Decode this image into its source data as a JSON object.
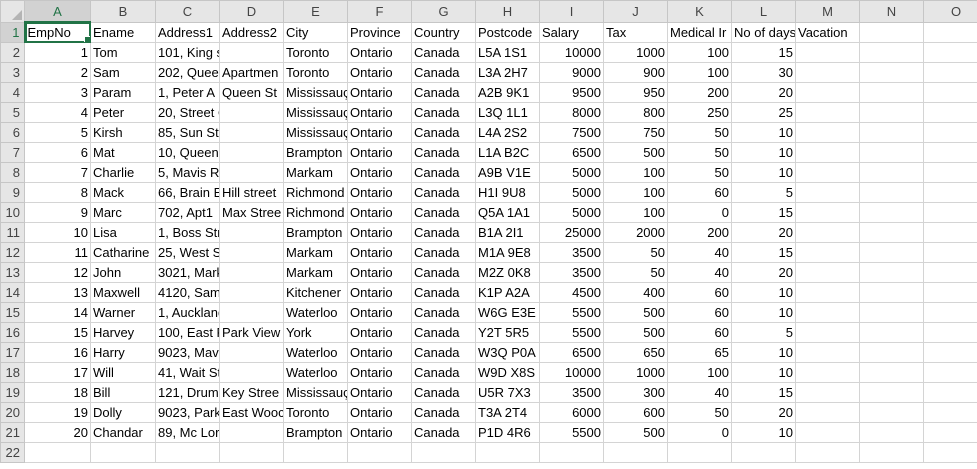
{
  "columns": [
    "A",
    "B",
    "C",
    "D",
    "E",
    "F",
    "G",
    "H",
    "I",
    "J",
    "K",
    "L",
    "M",
    "N",
    "O"
  ],
  "active_cell": {
    "column": "A",
    "row": 1
  },
  "rows": [
    {
      "n": "1",
      "c": [
        "EmpNo",
        "Ename",
        "Address1",
        "Address2",
        "City",
        "Province",
        "Country",
        "Postcode",
        "Salary",
        "Tax",
        "Medical Ir",
        "No of days",
        "Vacation",
        "",
        ""
      ]
    },
    {
      "n": "2",
      "c": [
        "1",
        "Tom",
        "101, King st",
        "",
        "Toronto",
        "Ontario",
        "Canada",
        "L5A 1S1",
        "10000",
        "1000",
        "100",
        "15",
        "",
        "",
        ""
      ]
    },
    {
      "n": "3",
      "c": [
        "2",
        "Sam",
        "202, Quee",
        "Apartmen",
        "Toronto",
        "Ontario",
        "Canada",
        "L3A 2H7",
        "9000",
        "900",
        "100",
        "30",
        "",
        "",
        ""
      ]
    },
    {
      "n": "4",
      "c": [
        "3",
        "Param",
        "1, Peter A",
        "Queen St",
        "Mississauç",
        "Ontario",
        "Canada",
        "A2B 9K1",
        "9500",
        "950",
        "200",
        "20",
        "",
        "",
        ""
      ]
    },
    {
      "n": "5",
      "c": [
        "4",
        "Peter",
        "20, Street One",
        "",
        "Mississauç",
        "Ontario",
        "Canada",
        "L3Q 1L1",
        "8000",
        "800",
        "250",
        "25",
        "",
        "",
        ""
      ]
    },
    {
      "n": "6",
      "c": [
        "5",
        "Kirsh",
        "85, Sun Street",
        "",
        "Mississauç",
        "Ontario",
        "Canada",
        "L4A 2S2",
        "7500",
        "750",
        "50",
        "10",
        "",
        "",
        ""
      ]
    },
    {
      "n": "7",
      "c": [
        "6",
        "Mat",
        "10, Queen street",
        "",
        "Brampton",
        "Ontario",
        "Canada",
        "L1A B2C",
        "6500",
        "500",
        "50",
        "10",
        "",
        "",
        ""
      ]
    },
    {
      "n": "8",
      "c": [
        "7",
        "Charlie",
        "5, Mavis Road",
        "",
        "Markam",
        "Ontario",
        "Canada",
        "A9B V1E",
        "5000",
        "100",
        "50",
        "10",
        "",
        "",
        ""
      ]
    },
    {
      "n": "9",
      "c": [
        "8",
        "Mack",
        "66, Brain E",
        "Hill street",
        "Richmond",
        "Ontario",
        "Canada",
        "H1I 9U8",
        "5000",
        "100",
        "60",
        "5",
        "",
        "",
        ""
      ]
    },
    {
      "n": "10",
      "c": [
        "9",
        "Marc",
        "702, Apt1",
        "Max Stree",
        "Richmond",
        "Ontario",
        "Canada",
        "Q5A 1A1",
        "5000",
        "100",
        "0",
        "15",
        "",
        "",
        ""
      ]
    },
    {
      "n": "11",
      "c": [
        "10",
        "Lisa",
        "1, Boss Street",
        "",
        "Brampton",
        "Ontario",
        "Canada",
        "B1A 2I1",
        "25000",
        "2000",
        "200",
        "20",
        "",
        "",
        ""
      ]
    },
    {
      "n": "12",
      "c": [
        "11",
        "Catharine",
        "25, West Street",
        "",
        "Markam",
        "Ontario",
        "Canada",
        "M1A 9E8",
        "3500",
        "50",
        "40",
        "15",
        "",
        "",
        ""
      ]
    },
    {
      "n": "13",
      "c": [
        "12",
        "John",
        "3021, Mark Street",
        "",
        "Markam",
        "Ontario",
        "Canada",
        "M2Z 0K8",
        "3500",
        "50",
        "40",
        "20",
        "",
        "",
        ""
      ]
    },
    {
      "n": "14",
      "c": [
        "13",
        "Maxwell",
        "4120, Samana Blvd",
        "",
        "Kitchener",
        "Ontario",
        "Canada",
        "K1P A2A",
        "4500",
        "400",
        "60",
        "10",
        "",
        "",
        ""
      ]
    },
    {
      "n": "15",
      "c": [
        "14",
        "Warner",
        "1, Auckland",
        "",
        "Waterloo",
        "Ontario",
        "Canada",
        "W6G E3E",
        "5500",
        "500",
        "60",
        "10",
        "",
        "",
        ""
      ]
    },
    {
      "n": "16",
      "c": [
        "15",
        "Harvey",
        "100, East F",
        "Park View",
        "York",
        "Ontario",
        "Canada",
        "Y2T 5R5",
        "5500",
        "500",
        "60",
        "5",
        "",
        "",
        ""
      ]
    },
    {
      "n": "17",
      "c": [
        "16",
        "Harry",
        "9023, Mavis Road",
        "",
        "Waterloo",
        "Ontario",
        "Canada",
        "W3Q P0A",
        "6500",
        "650",
        "65",
        "10",
        "",
        "",
        ""
      ]
    },
    {
      "n": "18",
      "c": [
        "17",
        "Will",
        "41, Wait Street",
        "",
        "Waterloo",
        "Ontario",
        "Canada",
        "W9D X8S",
        "10000",
        "1000",
        "100",
        "10",
        "",
        "",
        ""
      ]
    },
    {
      "n": "19",
      "c": [
        "18",
        "Bill",
        "121, Drum",
        "Key Stree",
        "Mississauç",
        "Ontario",
        "Canada",
        "U5R 7X3",
        "3500",
        "300",
        "40",
        "15",
        "",
        "",
        ""
      ]
    },
    {
      "n": "20",
      "c": [
        "19",
        "Dolly",
        "9023, Park",
        "East Wooc",
        "Toronto",
        "Ontario",
        "Canada",
        "T3A 2T4",
        "6000",
        "600",
        "50",
        "20",
        "",
        "",
        ""
      ]
    },
    {
      "n": "21",
      "c": [
        "20",
        "Chandar",
        "89, Mc Lorenc Road",
        "",
        "Brampton",
        "Ontario",
        "Canada",
        "P1D 4R6",
        "5500",
        "500",
        "0",
        "10",
        "",
        "",
        ""
      ]
    },
    {
      "n": "22",
      "c": [
        "",
        "",
        "",
        "",
        "",
        "",
        "",
        "",
        "",
        "",
        "",
        "",
        "",
        "",
        ""
      ]
    }
  ]
}
